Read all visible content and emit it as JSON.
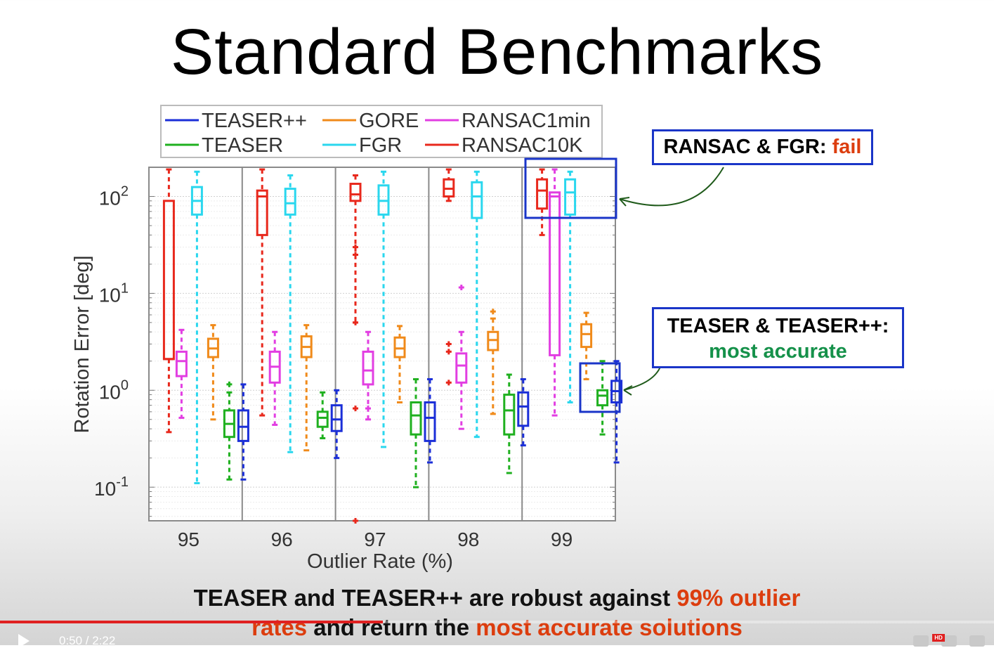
{
  "slide": {
    "title": "Standard Benchmarks",
    "callout_fail": {
      "prefix": "RANSAC & FGR: ",
      "highlight": "fail"
    },
    "callout_accurate": {
      "line1": "TEASER & TEASER++:",
      "line2": "most accurate"
    },
    "caption": {
      "p1": "TEASER and TEASER++ are robust against ",
      "h1": "99% outlier",
      "h2": "rates",
      "p2": " and return the ",
      "h3": "most accurate solutions"
    },
    "colors": {
      "highlight_red": "#dc3d0e",
      "highlight_green": "#15914a",
      "callout_border": "#1a35c8"
    }
  },
  "player": {
    "time": "0:50 / 2:22",
    "progress_fraction": 0.385,
    "hd_badge": "HD",
    "icons": [
      "play-icon",
      "settings-icon",
      "miniplayer-icon",
      "fullscreen-icon"
    ]
  },
  "chart_data": {
    "type": "box",
    "xlabel": "Outlier Rate (%)",
    "ylabel": "Rotation Error [deg]",
    "yscale": "log",
    "ylim": [
      0.045,
      200
    ],
    "yticks": [
      0.1,
      1,
      10,
      100
    ],
    "ytick_labels": [
      {
        "base": "10",
        "exp": "-1"
      },
      {
        "base": "10",
        "exp": "0"
      },
      {
        "base": "10",
        "exp": "1"
      },
      {
        "base": "10",
        "exp": "2"
      }
    ],
    "categories": [
      "95",
      "96",
      "97",
      "98",
      "99"
    ],
    "legend_position": "top",
    "grid": true,
    "series": [
      {
        "name": "RANSAC10K",
        "color": "#e8281c",
        "boxes": [
          {
            "lo": 0.37,
            "q1": 2.1,
            "med": 2.1,
            "q3": 90,
            "hi": 190,
            "out": []
          },
          {
            "lo": 0.55,
            "q1": 40,
            "med": 100,
            "q3": 115,
            "hi": 190,
            "out": []
          },
          {
            "lo": 5,
            "q1": 90,
            "med": 105,
            "q3": 135,
            "hi": 165,
            "out": [
              30,
              25,
              5,
              0.65,
              0.045
            ]
          },
          {
            "lo": 90,
            "q1": 100,
            "med": 120,
            "q3": 150,
            "hi": 190,
            "out": [
              3,
              2.5,
              1.2
            ]
          },
          {
            "lo": 40,
            "q1": 75,
            "med": 115,
            "q3": 150,
            "hi": 190,
            "out": []
          }
        ]
      },
      {
        "name": "RANSAC1min",
        "color": "#e23ee2",
        "boxes": [
          {
            "lo": 0.52,
            "q1": 1.4,
            "med": 2.0,
            "q3": 2.5,
            "hi": 4.2,
            "out": []
          },
          {
            "lo": 0.44,
            "q1": 1.2,
            "med": 1.75,
            "q3": 2.5,
            "hi": 4.0,
            "out": []
          },
          {
            "lo": 0.5,
            "q1": 1.15,
            "med": 1.6,
            "q3": 2.5,
            "hi": 4.0,
            "out": [
              0.65
            ]
          },
          {
            "lo": 0.4,
            "q1": 1.2,
            "med": 1.8,
            "q3": 2.4,
            "hi": 4.0,
            "out": [
              11.5
            ]
          },
          {
            "lo": 0.55,
            "q1": 2.3,
            "med": 100,
            "q3": 110,
            "hi": 190,
            "out": []
          }
        ]
      },
      {
        "name": "FGR",
        "color": "#2ad7ee",
        "boxes": [
          {
            "lo": 0.11,
            "q1": 65,
            "med": 90,
            "q3": 125,
            "hi": 180,
            "out": []
          },
          {
            "lo": 0.23,
            "q1": 65,
            "med": 85,
            "q3": 120,
            "hi": 165,
            "out": []
          },
          {
            "lo": 0.26,
            "q1": 65,
            "med": 90,
            "q3": 130,
            "hi": 180,
            "out": []
          },
          {
            "lo": 0.33,
            "q1": 60,
            "med": 100,
            "q3": 140,
            "hi": 180,
            "out": []
          },
          {
            "lo": 0.75,
            "q1": 65,
            "med": 110,
            "q3": 150,
            "hi": 180,
            "out": []
          }
        ]
      },
      {
        "name": "GORE",
        "color": "#f08a1a",
        "boxes": [
          {
            "lo": 0.5,
            "q1": 2.2,
            "med": 2.7,
            "q3": 3.4,
            "hi": 4.7,
            "out": []
          },
          {
            "lo": 0.24,
            "q1": 2.2,
            "med": 2.8,
            "q3": 3.6,
            "hi": 4.7,
            "out": []
          },
          {
            "lo": 0.75,
            "q1": 2.2,
            "med": 2.7,
            "q3": 3.5,
            "hi": 4.6,
            "out": []
          },
          {
            "lo": 0.57,
            "q1": 2.6,
            "med": 3.3,
            "q3": 4.0,
            "hi": 5.5,
            "out": [
              6.5
            ]
          },
          {
            "lo": 1.3,
            "q1": 2.8,
            "med": 3.8,
            "q3": 4.8,
            "hi": 6.3,
            "out": []
          }
        ]
      },
      {
        "name": "TEASER",
        "color": "#1fb01f",
        "boxes": [
          {
            "lo": 0.12,
            "q1": 0.33,
            "med": 0.45,
            "q3": 0.62,
            "hi": 0.95,
            "out": [
              1.15
            ]
          },
          {
            "lo": 0.32,
            "q1": 0.42,
            "med": 0.52,
            "q3": 0.6,
            "hi": 0.95,
            "out": []
          },
          {
            "lo": 0.1,
            "q1": 0.35,
            "med": 0.55,
            "q3": 0.75,
            "hi": 1.3,
            "out": []
          },
          {
            "lo": 0.14,
            "q1": 0.35,
            "med": 0.62,
            "q3": 0.9,
            "hi": 1.45,
            "out": []
          },
          {
            "lo": 0.35,
            "q1": 0.7,
            "med": 0.88,
            "q3": 1.0,
            "hi": 2.0,
            "out": []
          }
        ]
      },
      {
        "name": "TEASER++",
        "color": "#1b2fd8",
        "boxes": [
          {
            "lo": 0.12,
            "q1": 0.3,
            "med": 0.42,
            "q3": 0.62,
            "hi": 1.15,
            "out": []
          },
          {
            "lo": 0.2,
            "q1": 0.38,
            "med": 0.5,
            "q3": 0.7,
            "hi": 1.0,
            "out": []
          },
          {
            "lo": 0.18,
            "q1": 0.3,
            "med": 0.52,
            "q3": 0.75,
            "hi": 1.3,
            "out": []
          },
          {
            "lo": 0.27,
            "q1": 0.43,
            "med": 0.68,
            "q3": 0.95,
            "hi": 1.3,
            "out": []
          },
          {
            "lo": 0.18,
            "q1": 0.75,
            "med": 0.98,
            "q3": 1.25,
            "hi": 2.0,
            "out": []
          }
        ]
      }
    ]
  }
}
